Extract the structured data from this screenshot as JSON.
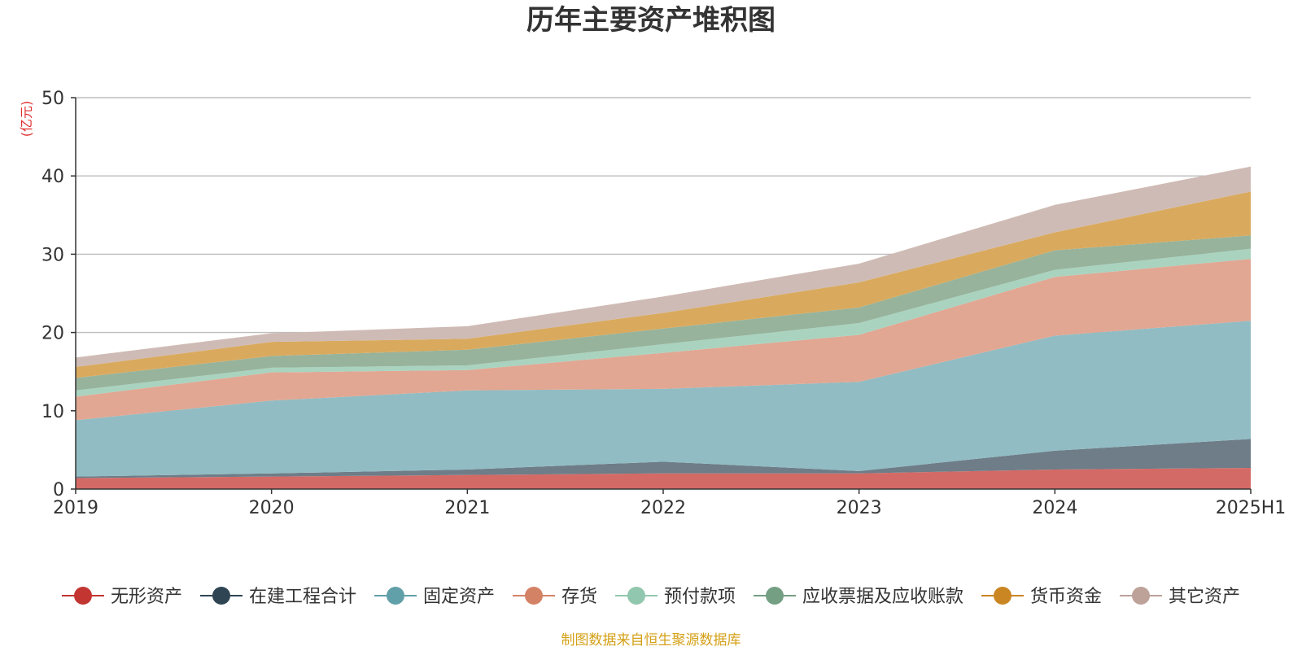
{
  "chart_data": {
    "type": "area",
    "title": "历年主要资产堆积图",
    "unit_label": "(亿元)",
    "source_note": "制图数据来自恒生聚源数据库",
    "x": [
      "2019",
      "2020",
      "2021",
      "2022",
      "2023",
      "2024",
      "2025H1"
    ],
    "ylim": [
      0,
      50
    ],
    "yticks": [
      0,
      10,
      20,
      30,
      40,
      50
    ],
    "grid": true,
    "legend_position": "bottom",
    "stacked": true,
    "series": [
      {
        "name": "无形资产",
        "color": "#c23531",
        "fill": "#d46a66",
        "values": [
          1.4,
          1.6,
          1.8,
          2.0,
          2.0,
          2.5,
          2.7
        ]
      },
      {
        "name": "在建工程合计",
        "color": "#2f4554",
        "fill": "#6e7d88",
        "values": [
          0.2,
          0.4,
          0.7,
          1.5,
          0.3,
          2.4,
          3.7
        ]
      },
      {
        "name": "固定资产",
        "color": "#61a0a8",
        "fill": "#91bcc3",
        "values": [
          7.2,
          9.3,
          10.1,
          9.3,
          11.4,
          14.7,
          15.1
        ]
      },
      {
        "name": "存货",
        "color": "#d48265",
        "fill": "#e1a793",
        "values": [
          3.0,
          3.6,
          2.6,
          4.6,
          6.0,
          7.5,
          7.9
        ]
      },
      {
        "name": "预付款项",
        "color": "#91c7ae",
        "fill": "#a9d3bf",
        "values": [
          0.8,
          0.6,
          0.6,
          1.1,
          1.5,
          0.9,
          1.3
        ]
      },
      {
        "name": "应收票据及应收账款",
        "color": "#749f83",
        "fill": "#97b39c",
        "values": [
          1.6,
          1.5,
          2.0,
          2.0,
          2.0,
          2.5,
          1.7
        ]
      },
      {
        "name": "货币资金",
        "color": "#ca8622",
        "fill": "#d9aa5e",
        "values": [
          1.4,
          1.8,
          1.4,
          2.0,
          3.2,
          2.3,
          5.6
        ]
      },
      {
        "name": "其它资产",
        "color": "#bda29a",
        "fill": "#cfbbb5",
        "values": [
          1.2,
          1.1,
          1.6,
          2.1,
          2.4,
          3.5,
          3.2
        ]
      }
    ]
  }
}
